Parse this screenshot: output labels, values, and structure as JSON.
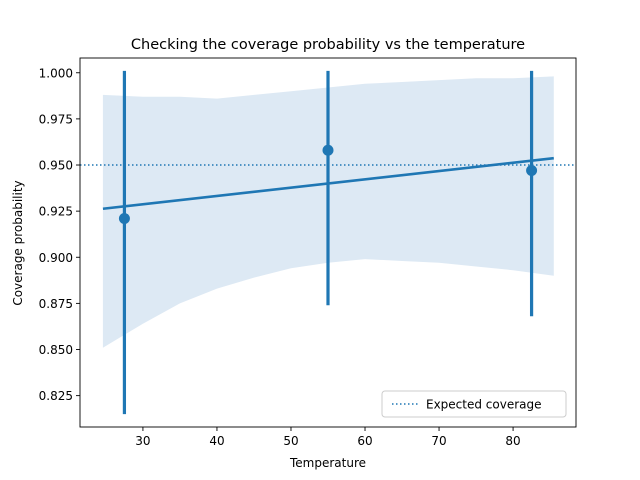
{
  "chart_data": {
    "type": "scatter",
    "title": "Checking the coverage probability vs the temperature",
    "xlabel": "Temperature",
    "ylabel": "Coverage probability",
    "xlim": [
      21.5,
      88.5
    ],
    "ylim": [
      0.808,
      1.008
    ],
    "xticks": [
      30,
      40,
      50,
      60,
      70,
      80
    ],
    "yticks": [
      0.825,
      0.85,
      0.875,
      0.9,
      0.925,
      0.95,
      0.975,
      1.0
    ],
    "ytick_labels": [
      "0.825",
      "0.850",
      "0.875",
      "0.900",
      "0.925",
      "0.950",
      "0.975",
      "1.000"
    ],
    "grid": false,
    "legend_position": "bottom-right",
    "colors": {
      "points": "#1f77b4",
      "band": "#dde9f4",
      "reference": "#1f77b4"
    },
    "points": [
      {
        "x": 27.5,
        "y": 0.921,
        "ci": [
          0.815,
          1.001
        ]
      },
      {
        "x": 55.0,
        "y": 0.958,
        "ci": [
          0.874,
          1.001
        ]
      },
      {
        "x": 82.5,
        "y": 0.947,
        "ci": [
          0.868,
          1.001
        ]
      }
    ],
    "regression_line": {
      "x": [
        24.6,
        85.5
      ],
      "y": [
        0.9263,
        0.9537
      ]
    },
    "confidence_band": {
      "x": [
        24.6,
        30.0,
        35.0,
        40.0,
        45.0,
        50.0,
        55.0,
        60.0,
        65.0,
        70.0,
        75.0,
        80.0,
        85.5
      ],
      "upper": [
        0.988,
        0.987,
        0.987,
        0.986,
        0.988,
        0.99,
        0.992,
        0.994,
        0.995,
        0.996,
        0.997,
        0.997,
        0.998
      ],
      "lower": [
        0.851,
        0.864,
        0.875,
        0.883,
        0.889,
        0.894,
        0.897,
        0.899,
        0.898,
        0.897,
        0.895,
        0.893,
        0.89
      ]
    },
    "reference_line": {
      "y": 0.95,
      "label": "Expected coverage"
    },
    "legend": [
      {
        "label": "Expected coverage",
        "style": "dotted"
      }
    ]
  }
}
